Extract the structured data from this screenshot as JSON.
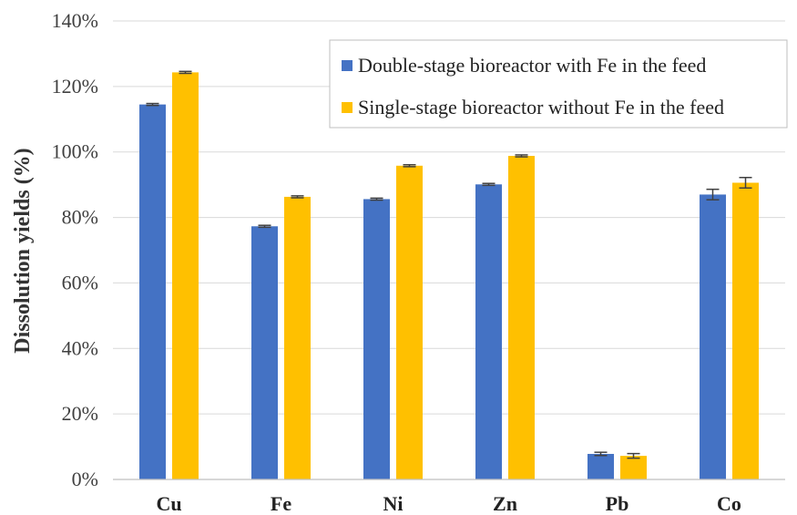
{
  "chart_data": {
    "type": "bar",
    "title": "",
    "xlabel": "",
    "ylabel": "Dissolution yields (%)",
    "ylim": [
      0,
      140
    ],
    "yticks": [
      "0%",
      "20%",
      "40%",
      "60%",
      "80%",
      "100%",
      "120%",
      "140%"
    ],
    "grid": true,
    "legend_position": "top-right",
    "categories": [
      "Cu",
      "Fe",
      "Ni",
      "Zn",
      "Pb",
      "Co"
    ],
    "series": [
      {
        "name": "Double-stage bioreactor with Fe in the feed",
        "color": "#4472c4",
        "values": [
          114.5,
          77.3,
          85.6,
          90.1,
          7.8,
          87.0
        ],
        "errors": [
          0.3,
          0.3,
          0.3,
          0.3,
          0.5,
          1.6
        ]
      },
      {
        "name": "Single-stage bioreactor without Fe in the feed",
        "color": "#ffc000",
        "values": [
          124.3,
          86.3,
          95.8,
          98.8,
          7.2,
          90.6
        ],
        "errors": [
          0.3,
          0.3,
          0.3,
          0.3,
          0.7,
          1.6
        ]
      }
    ]
  }
}
